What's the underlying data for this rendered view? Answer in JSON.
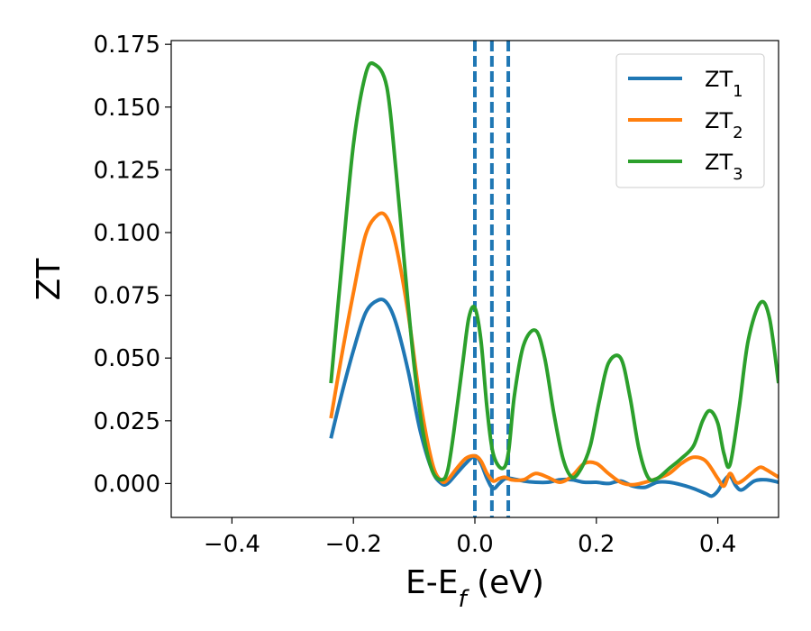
{
  "chart_data": {
    "type": "line",
    "title": "",
    "xlabel": {
      "main": "E-E",
      "sub": "f",
      "rest": " (eV)"
    },
    "ylabel": "ZT",
    "xlim": [
      -0.5,
      0.5
    ],
    "ylim": [
      -0.0135,
      0.1765
    ],
    "xticks": [
      -0.4,
      -0.2,
      0.0,
      0.2,
      0.4
    ],
    "xtick_labels": [
      "−0.4",
      "−0.2",
      "0.0",
      "0.2",
      "0.4"
    ],
    "yticks": [
      0.0,
      0.025,
      0.05,
      0.075,
      0.1,
      0.125,
      0.15,
      0.175
    ],
    "ytick_labels": [
      "0.000",
      "0.025",
      "0.050",
      "0.075",
      "0.100",
      "0.125",
      "0.150",
      "0.175"
    ],
    "grid": false,
    "legend": {
      "position": "top-right"
    },
    "colors": {
      "zt1": "#1f77b4",
      "zt2": "#ff7f0e",
      "zt3": "#2ca02c",
      "fermi": "#000000"
    },
    "vlines": [
      {
        "x": 0.0,
        "style": "dashed",
        "color": "#000000"
      },
      {
        "x": 0.0,
        "style": "dashed",
        "color": "#1f77b4"
      },
      {
        "x": 0.028,
        "style": "dashed",
        "color": "#1f77b4"
      },
      {
        "x": 0.055,
        "style": "dashed",
        "color": "#1f77b4"
      }
    ],
    "series": [
      {
        "name": "ZT",
        "sub": "1",
        "color": "#1f77b4",
        "x": [
          -0.237,
          -0.22,
          -0.2,
          -0.18,
          -0.16,
          -0.145,
          -0.13,
          -0.11,
          -0.09,
          -0.07,
          -0.055,
          -0.045,
          -0.03,
          -0.015,
          0.0,
          0.01,
          0.02,
          0.03,
          0.04,
          0.05,
          0.06,
          0.08,
          0.1,
          0.12,
          0.14,
          0.16,
          0.18,
          0.2,
          0.22,
          0.24,
          0.26,
          0.28,
          0.3,
          0.32,
          0.34,
          0.36,
          0.38,
          0.39,
          0.4,
          0.41,
          0.42,
          0.43,
          0.44,
          0.46,
          0.48,
          0.5
        ],
        "y": [
          0.018,
          0.035,
          0.053,
          0.068,
          0.073,
          0.072,
          0.064,
          0.045,
          0.021,
          0.005,
          0.0,
          0.0,
          0.004,
          0.008,
          0.011,
          0.008,
          0.002,
          -0.002,
          0.0,
          0.002,
          0.002,
          0.001,
          0.0005,
          0.0005,
          0.0015,
          0.0015,
          0.0005,
          0.0005,
          0.0,
          0.001,
          -0.001,
          -0.0015,
          0.0005,
          0.0005,
          -0.0005,
          -0.002,
          -0.004,
          -0.005,
          -0.003,
          0.001,
          0.003,
          -0.001,
          -0.0025,
          0.001,
          0.0015,
          0.0005
        ]
      },
      {
        "name": "ZT",
        "sub": "2",
        "color": "#ff7f0e",
        "x": [
          -0.237,
          -0.22,
          -0.2,
          -0.18,
          -0.16,
          -0.145,
          -0.13,
          -0.11,
          -0.09,
          -0.07,
          -0.055,
          -0.045,
          -0.03,
          -0.015,
          0.0,
          0.01,
          0.02,
          0.03,
          0.04,
          0.05,
          0.06,
          0.08,
          0.1,
          0.12,
          0.14,
          0.16,
          0.18,
          0.2,
          0.22,
          0.24,
          0.26,
          0.28,
          0.3,
          0.32,
          0.34,
          0.36,
          0.38,
          0.4,
          0.41,
          0.42,
          0.43,
          0.44,
          0.46,
          0.47,
          0.48,
          0.5
        ],
        "y": [
          0.026,
          0.05,
          0.076,
          0.099,
          0.107,
          0.106,
          0.095,
          0.068,
          0.033,
          0.008,
          0.001,
          0.0015,
          0.006,
          0.01,
          0.011,
          0.009,
          0.004,
          0.001,
          0.002,
          0.0025,
          0.0015,
          0.0015,
          0.004,
          0.0025,
          0.0005,
          0.003,
          0.008,
          0.008,
          0.004,
          0.0005,
          -0.0005,
          0.0005,
          0.002,
          0.004,
          0.008,
          0.0105,
          0.009,
          0.002,
          -0.001,
          0.004,
          0.0005,
          0.001,
          0.005,
          0.0065,
          0.0055,
          0.0025
        ]
      },
      {
        "name": "ZT",
        "sub": "3",
        "color": "#2ca02c",
        "x": [
          -0.237,
          -0.22,
          -0.2,
          -0.18,
          -0.165,
          -0.145,
          -0.13,
          -0.115,
          -0.1,
          -0.085,
          -0.07,
          -0.055,
          -0.045,
          -0.035,
          -0.02,
          -0.01,
          0.0,
          0.01,
          0.02,
          0.03,
          0.045,
          0.055,
          0.065,
          0.08,
          0.1,
          0.115,
          0.13,
          0.145,
          0.16,
          0.175,
          0.19,
          0.205,
          0.22,
          0.24,
          0.255,
          0.27,
          0.285,
          0.3,
          0.32,
          0.34,
          0.36,
          0.375,
          0.387,
          0.4,
          0.41,
          0.42,
          0.435,
          0.45,
          0.47,
          0.485,
          0.5
        ],
        "y": [
          0.04,
          0.085,
          0.135,
          0.163,
          0.167,
          0.158,
          0.125,
          0.085,
          0.047,
          0.02,
          0.005,
          0.0015,
          0.005,
          0.02,
          0.048,
          0.066,
          0.07,
          0.057,
          0.03,
          0.012,
          0.006,
          0.012,
          0.035,
          0.055,
          0.061,
          0.05,
          0.028,
          0.01,
          0.0025,
          0.006,
          0.015,
          0.033,
          0.048,
          0.05,
          0.035,
          0.014,
          0.0025,
          0.002,
          0.006,
          0.01,
          0.015,
          0.025,
          0.029,
          0.024,
          0.012,
          0.0075,
          0.03,
          0.057,
          0.072,
          0.066,
          0.04
        ]
      }
    ]
  }
}
